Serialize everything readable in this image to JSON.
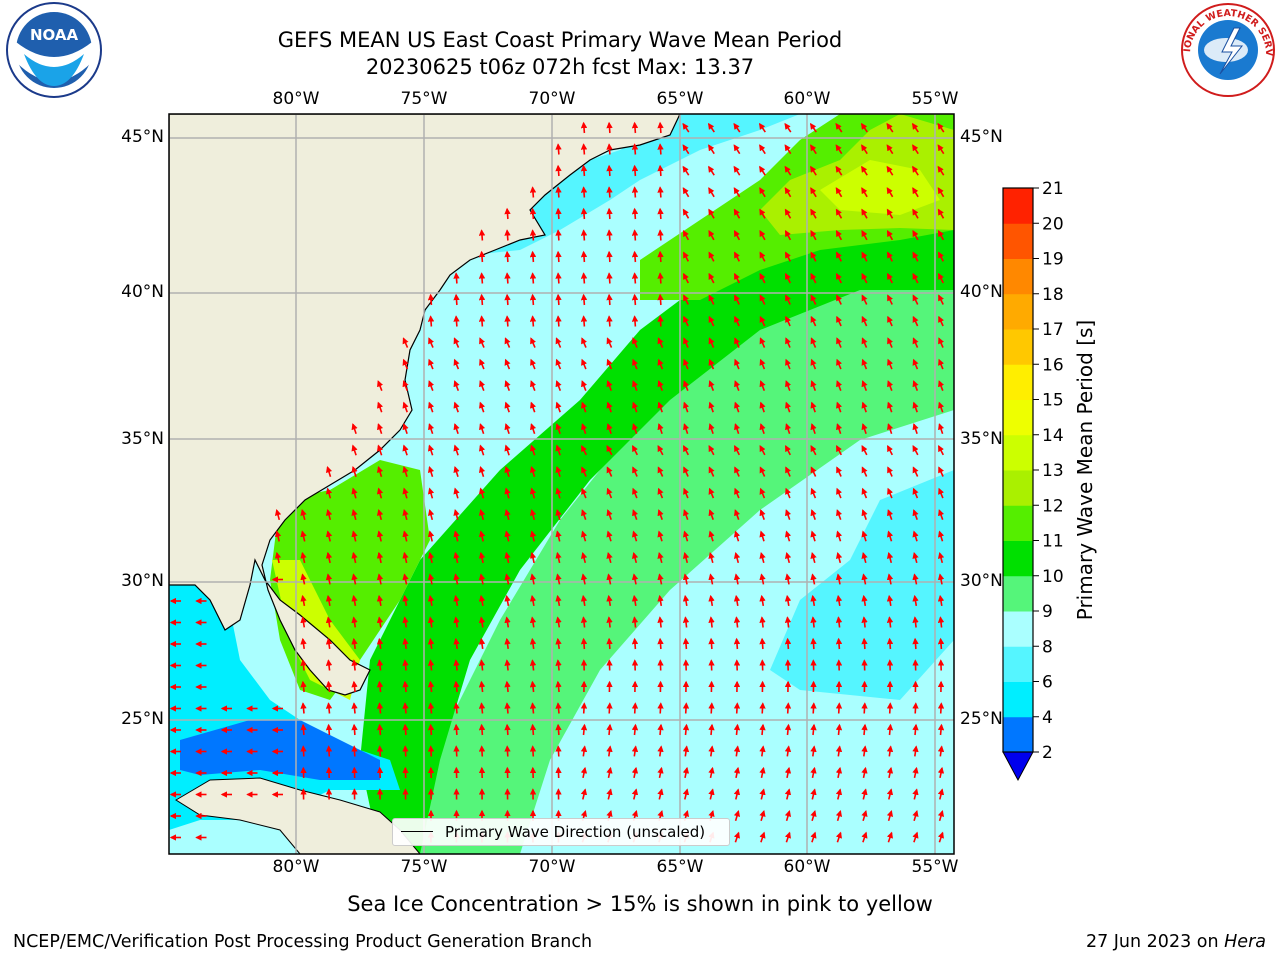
{
  "title": {
    "line1": "GEFS MEAN US East Coast Primary Wave Mean Period",
    "line2": "20230625 t06z 072h fcst   Max: 13.37"
  },
  "map": {
    "lon_range": [
      -85,
      -54
    ],
    "lat_range": [
      20.5,
      45.8
    ],
    "lon_ticks": [
      "80°W",
      "75°W",
      "70°W",
      "65°W",
      "60°W",
      "55°W"
    ],
    "lat_ticks": [
      "45°N",
      "40°N",
      "35°N",
      "30°N",
      "25°N"
    ],
    "land_color": "#efeedc",
    "gridline_color": "#b0b0b0",
    "arrow_color": "#ff0000",
    "legend_label": "Primary Wave Direction (unscaled)"
  },
  "colorbar": {
    "label": "Primary Wave Mean Period [s]",
    "ticks": [
      "2",
      "4",
      "6",
      "8",
      "9",
      "10",
      "11",
      "12",
      "13",
      "14",
      "15",
      "16",
      "17",
      "18",
      "19",
      "20",
      "21"
    ],
    "colors": [
      "#0077ff",
      "#00eeff",
      "#55f5ff",
      "#aaffff",
      "#55f57a",
      "#00e000",
      "#55ee00",
      "#aaf000",
      "#ccff00",
      "#eeff00",
      "#ffee00",
      "#ffc800",
      "#ffaa00",
      "#ff8800",
      "#ff5500",
      "#ff2200",
      "#ff0000"
    ],
    "under_color": "#0000ee"
  },
  "subtitle": "Sea Ice Concentration > 15% is shown in pink to yellow",
  "credits": {
    "left": "NCEP/EMC/Verification Post Processing Product Generation Branch",
    "right_date": "27 Jun 2023 on ",
    "right_machine": "Hera"
  },
  "logos": {
    "noaa_text": "NOAA",
    "nws_text": "NATIONAL WEATHER SERVICE"
  }
}
